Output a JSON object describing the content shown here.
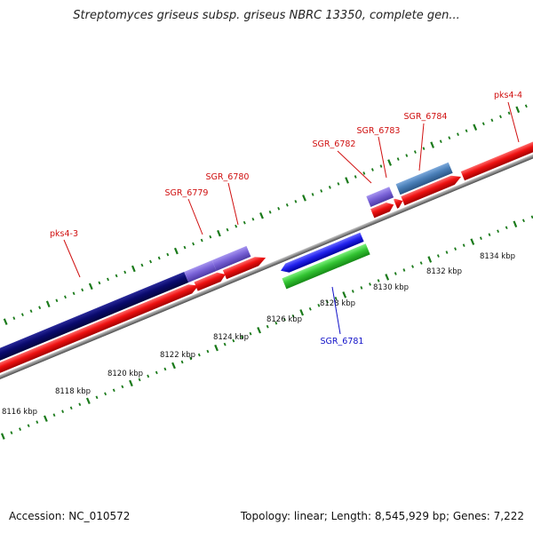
{
  "title": "Streptomyces griseus subsp. griseus NBRC 13350, complete gen...",
  "footer": {
    "accession": "Accession: NC_010572",
    "stats": "Topology: linear; Length: 8,545,929 bp; Genes: 7,222"
  },
  "colors": {
    "forward_cds": "#ee1111",
    "reverse_cds": "#2222ee",
    "pks_cluster": "#0a0a6e",
    "gene_violet": "#7a63d8",
    "gene_steel": "#4a7fb8",
    "gene_green": "#33c433",
    "backbone": "#8a8a8a",
    "tick": "#1a7a1a",
    "label_forward": "#d01010",
    "label_reverse": "#1010c8"
  },
  "scale": {
    "labels": [
      "8116 kbp",
      "8118 kbp",
      "8120 kbp",
      "8122 kbp",
      "8124 kbp",
      "8126 kbp",
      "8128 kbp",
      "8130 kbp",
      "8132 kbp",
      "8134 kbp"
    ]
  },
  "genes": [
    {
      "label": "pks4-3",
      "strand": "forward"
    },
    {
      "label": "SGR_6779",
      "strand": "forward"
    },
    {
      "label": "SGR_6780",
      "strand": "forward"
    },
    {
      "label": "SGR_6782",
      "strand": "forward"
    },
    {
      "label": "SGR_6783",
      "strand": "forward"
    },
    {
      "label": "SGR_6784",
      "strand": "forward"
    },
    {
      "label": "pks4-4",
      "strand": "forward"
    },
    {
      "label": "SGR_6781",
      "strand": "reverse"
    }
  ]
}
